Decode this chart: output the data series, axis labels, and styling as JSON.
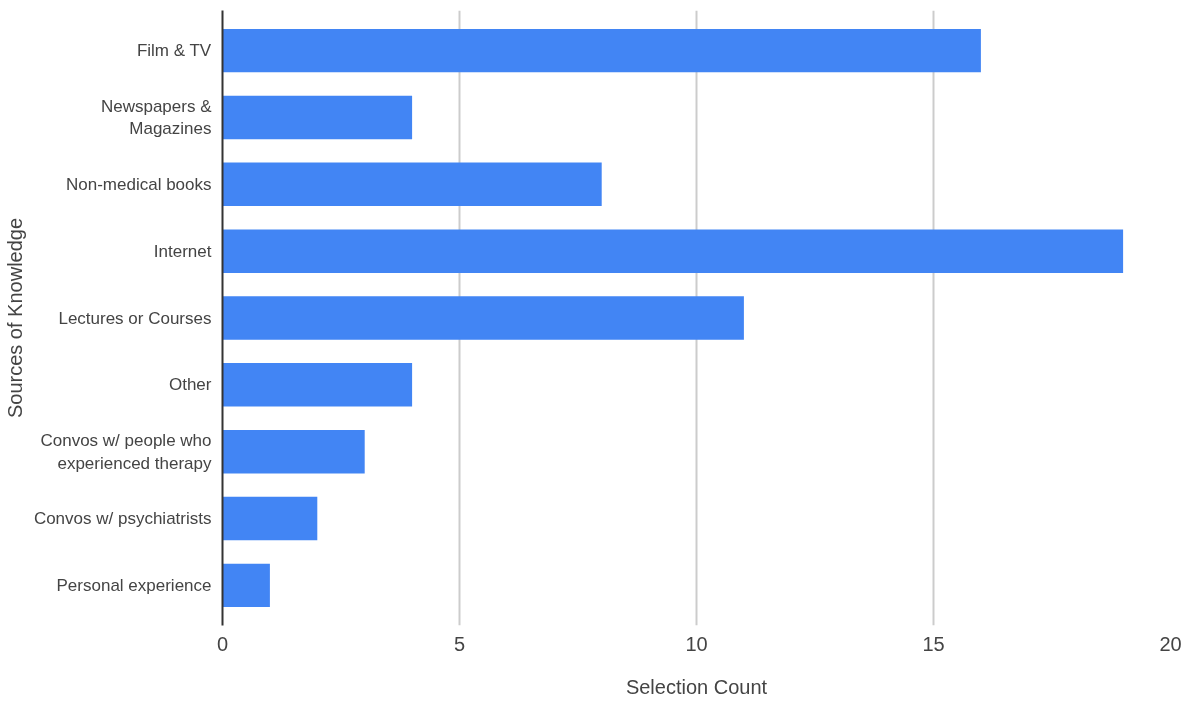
{
  "chart_data": {
    "type": "bar",
    "orientation": "horizontal",
    "categories": [
      "Film & TV",
      "Newspapers &\nMagazines",
      "Non-medical books",
      "Internet",
      "Lectures or Courses",
      "Other",
      "Convos w/ people who\nexperienced therapy",
      "Convos w/ psychiatrists",
      "Personal experience"
    ],
    "values": [
      16,
      4,
      8,
      19,
      11,
      4,
      3,
      2,
      1
    ],
    "color": "#4285f4",
    "xlim": [
      0,
      20
    ],
    "xticks": [
      0,
      5,
      10,
      15,
      20
    ],
    "xlabel": "Selection Count",
    "ylabel": "Sources of Knowledge",
    "grid": "x"
  }
}
